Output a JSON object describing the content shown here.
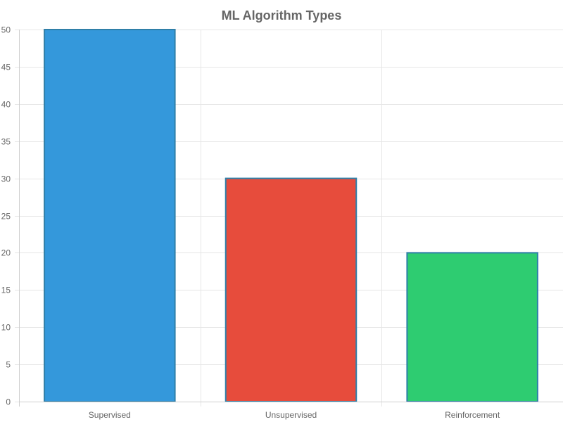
{
  "chart_data": {
    "type": "bar",
    "title": "ML Algorithm Types",
    "categories": [
      "Supervised",
      "Unsupervised",
      "Reinforcement"
    ],
    "values": [
      50,
      30,
      20
    ],
    "colors": [
      "#3498db",
      "#e74c3c",
      "#2ecc71"
    ],
    "border_color": "#2f7fa8",
    "ylim": [
      0,
      50
    ],
    "yticks": [
      0,
      5,
      10,
      15,
      20,
      25,
      30,
      35,
      40,
      45,
      50
    ],
    "xlabel": "",
    "ylabel": "",
    "grid": true,
    "legend": "none"
  }
}
